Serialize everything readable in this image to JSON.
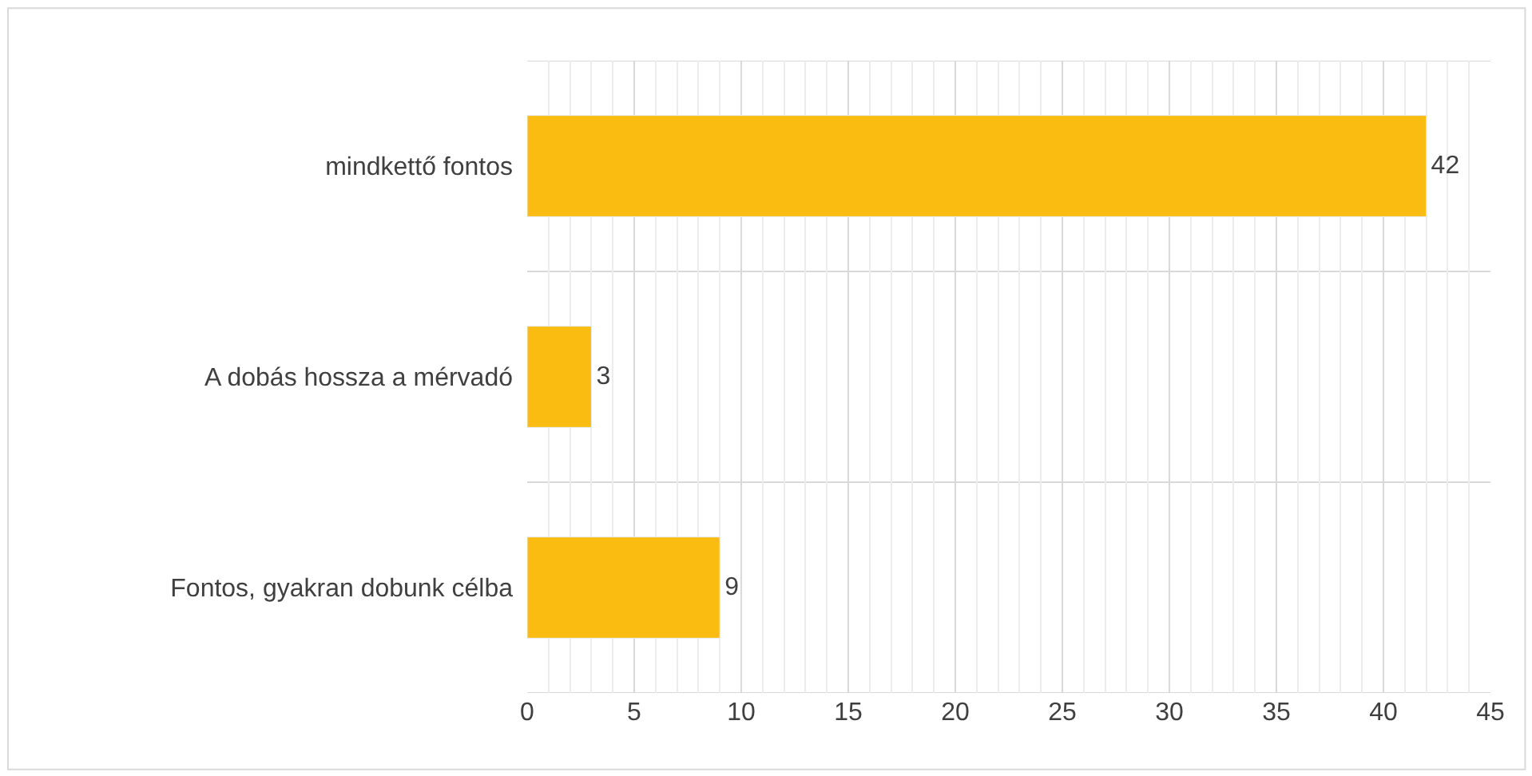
{
  "chart_data": {
    "type": "bar",
    "orientation": "horizontal",
    "categories": [
      "mindkettő fontos",
      "A dobás hossza a mérvadó",
      "Fontos, gyakran dobunk célba"
    ],
    "values": [
      42,
      3,
      9
    ],
    "color": "#fbbc11",
    "xlim": [
      0,
      45
    ],
    "xticks": [
      0,
      5,
      10,
      15,
      20,
      25,
      30,
      35,
      40,
      45
    ],
    "grid": "x",
    "data_labels": true
  }
}
